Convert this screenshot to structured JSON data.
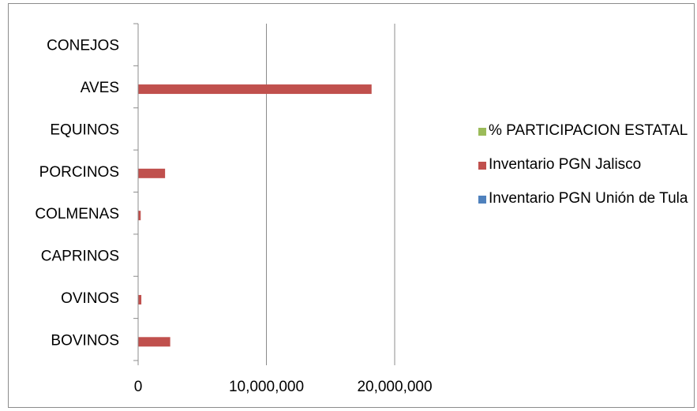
{
  "chart_data": {
    "type": "bar",
    "orientation": "horizontal",
    "categories": [
      "BOVINOS",
      "OVINOS",
      "CAPRINOS",
      "COLMENAS",
      "PORCINOS",
      "EQUINOS",
      "AVES",
      "CONEJOS"
    ],
    "series": [
      {
        "name": "Inventario PGN Unión de Tula",
        "color": "#4f81bd",
        "values": [
          0,
          0,
          0,
          0,
          0,
          0,
          0,
          0
        ]
      },
      {
        "name": "Inventario PGN Jalisco",
        "color": "#c0504d",
        "values": [
          2500000,
          250000,
          0,
          200000,
          2100000,
          0,
          18200000,
          0
        ]
      },
      {
        "name": "% PARTICIPACION ESTATAL",
        "color": "#9bbb59",
        "values": [
          0,
          0,
          0,
          0,
          0,
          0,
          0,
          0
        ]
      }
    ],
    "xlim": [
      0,
      20000000
    ],
    "x_ticks": [
      "0",
      "10,000,000",
      "20,000,000"
    ],
    "x_tick_values": [
      0,
      10000000,
      20000000
    ],
    "gridlines": "vertical major",
    "legend_position": "right"
  }
}
